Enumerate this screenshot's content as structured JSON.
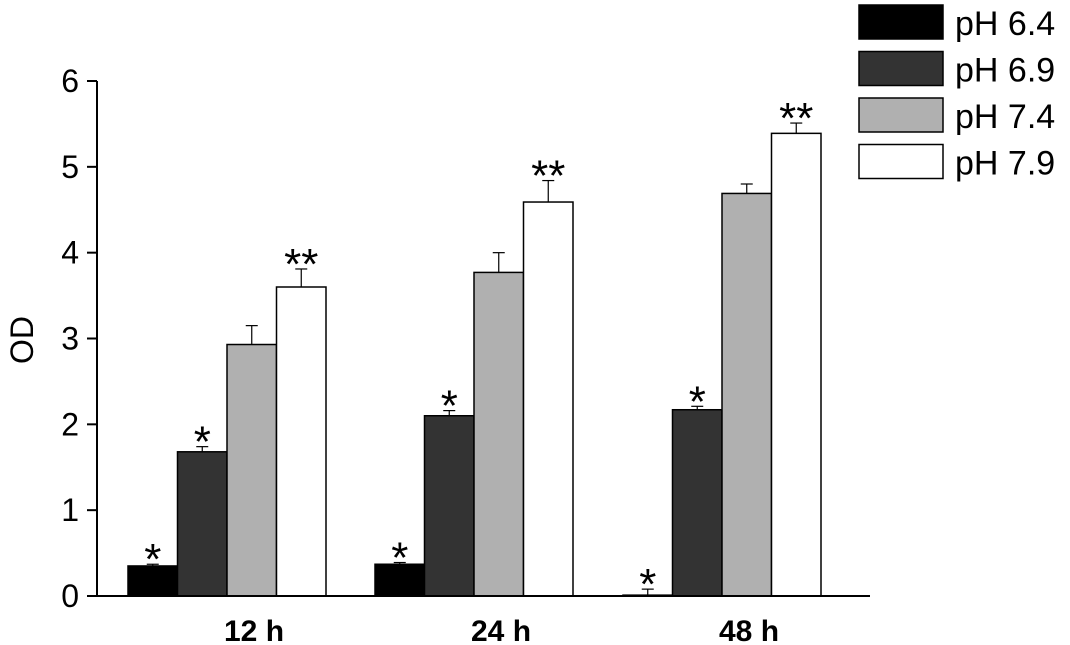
{
  "chart_data": {
    "type": "bar",
    "categories": [
      "12 h",
      "24 h",
      "48 h"
    ],
    "ylabel": "OD",
    "ylim": [
      0,
      6
    ],
    "yticks": [
      "0",
      "1",
      "2",
      "3",
      "4",
      "5",
      "6"
    ],
    "legend_position": "top-right",
    "series": [
      {
        "name": "pH 6.4",
        "color": "#000000",
        "values": [
          0.35,
          0.37,
          0.01
        ],
        "errors": [
          0.02,
          0.02,
          0.07
        ],
        "markers": [
          "*",
          "*",
          "*"
        ]
      },
      {
        "name": "pH 6.9",
        "color": "#333333",
        "values": [
          1.68,
          2.1,
          2.17
        ],
        "errors": [
          0.06,
          0.06,
          0.04
        ],
        "markers": [
          "*",
          "*",
          "*"
        ]
      },
      {
        "name": "pH 7.4",
        "color": "#b0b0b0",
        "values": [
          2.93,
          3.77,
          4.69
        ],
        "errors": [
          0.22,
          0.23,
          0.11
        ],
        "markers": [
          "",
          "",
          ""
        ]
      },
      {
        "name": "pH 7.9",
        "color": "#ffffff",
        "values": [
          3.6,
          4.59,
          5.39
        ],
        "errors": [
          0.21,
          0.25,
          0.12
        ],
        "markers": [
          "**",
          "**",
          "**"
        ]
      }
    ]
  }
}
